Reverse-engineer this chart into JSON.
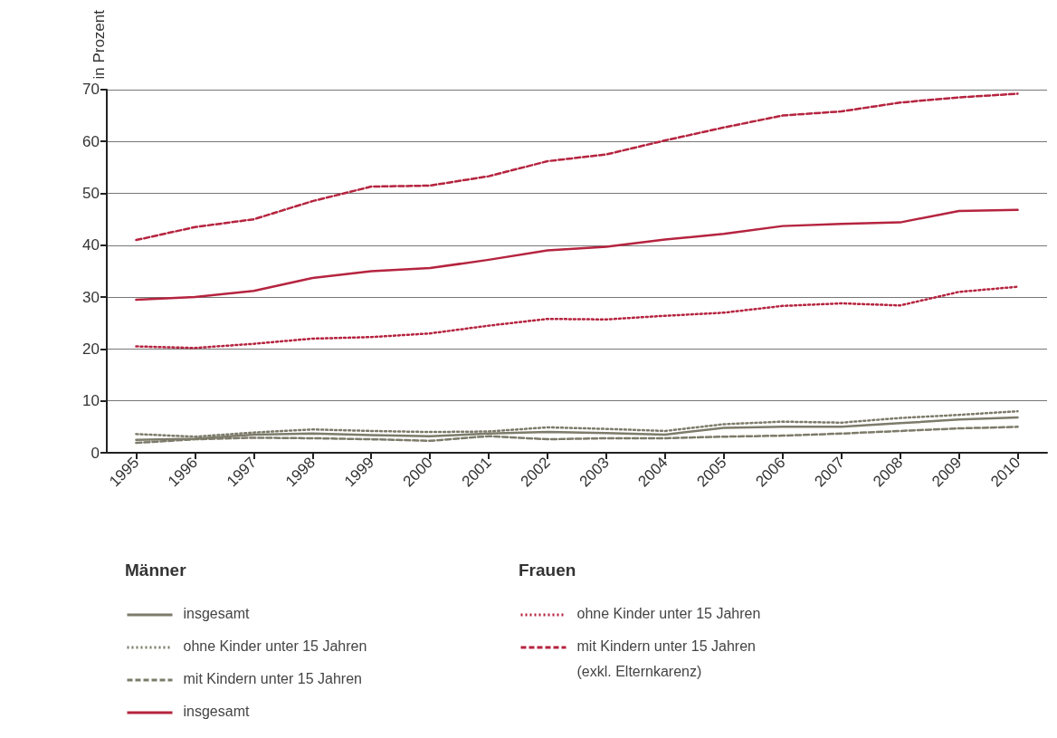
{
  "chart_data": {
    "type": "line",
    "ylabel": "in Prozent",
    "categories": [
      "1995",
      "1996",
      "1997",
      "1998",
      "1999",
      "2000",
      "2001",
      "2002",
      "2003",
      "2004",
      "2005",
      "2006",
      "2007",
      "2008",
      "2009",
      "2010"
    ],
    "ylim": [
      0,
      70
    ],
    "yticks": [
      0,
      10,
      20,
      30,
      40,
      50,
      60,
      70
    ],
    "grid": "y",
    "legend": "bottom",
    "marker": "none",
    "annotations": [
      "Männer",
      "Frauen"
    ],
    "series": [
      {
        "name": "insgesamt",
        "color": "#7d7b6a",
        "line_style": "solid",
        "values": [
          2.5,
          2.7,
          3.5,
          3.7,
          3.4,
          3.2,
          3.7,
          4,
          3.8,
          3.5,
          4.8,
          5,
          5,
          5.7,
          6.4,
          6.8
        ]
      },
      {
        "name": "ohne Kinder unter 15 Jahren",
        "color": "#7d7b6a",
        "line_style": "dotted",
        "values": [
          3.6,
          3.1,
          3.9,
          4.5,
          4.2,
          4,
          4.1,
          4.9,
          4.6,
          4.2,
          5.5,
          6,
          5.8,
          6.7,
          7.3,
          8
        ]
      },
      {
        "name": "mit Kindern unter 15 Jahren",
        "color": "#7d7b6a",
        "line_style": "dashed",
        "values": [
          1.9,
          2.6,
          2.9,
          2.8,
          2.6,
          2.3,
          3.2,
          2.6,
          2.8,
          2.8,
          3.1,
          3.3,
          3.7,
          4.2,
          4.7,
          5
        ]
      },
      {
        "name": "insgesamt",
        "color": "#b5243f",
        "line_style": "solid",
        "values": [
          29.5,
          30,
          31.2,
          33.7,
          35,
          35.6,
          37.2,
          39,
          39.7,
          41.1,
          42.2,
          43.7,
          44.1,
          44.4,
          46.6,
          46.8
        ]
      },
      {
        "name": "ohne Kinder unter 15 Jahren",
        "color": "#b5243f",
        "line_style": "dotted",
        "values": [
          20.5,
          20.2,
          21,
          22,
          22.3,
          23,
          24.5,
          25.8,
          25.7,
          26.4,
          27,
          28.3,
          28.8,
          28.4,
          31,
          32
        ]
      },
      {
        "name": "mit Kindern unter 15 Jahren\n(exkl. Elternkarenz)",
        "color": "#b5243f",
        "line_style": "dashed",
        "values": [
          41,
          43.5,
          45,
          48.5,
          51.3,
          51.5,
          53.3,
          56.2,
          57.5,
          60.2,
          62.7,
          65,
          65.8,
          67.5,
          68.5,
          69.2
        ]
      }
    ]
  }
}
